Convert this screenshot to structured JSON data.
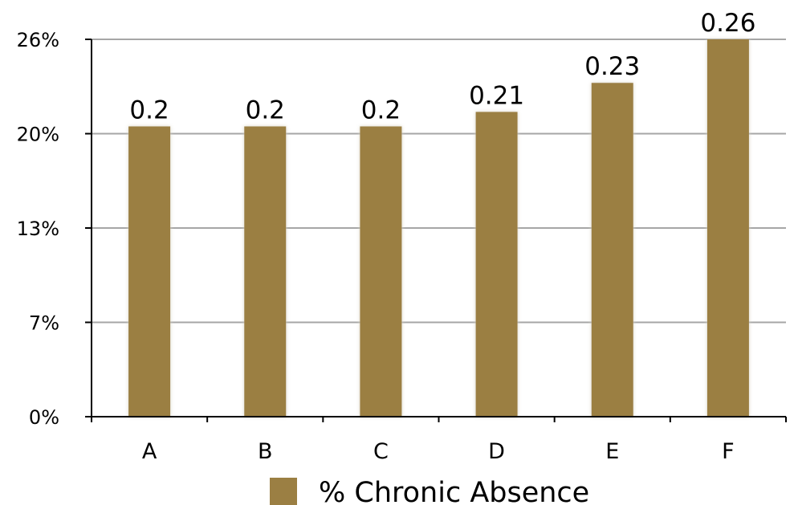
{
  "chart_data": {
    "type": "bar",
    "categories": [
      "A",
      "B",
      "C",
      "D",
      "E",
      "F"
    ],
    "series": [
      {
        "name": "% Chronic Absence",
        "values": [
          0.2,
          0.2,
          0.2,
          0.21,
          0.23,
          0.26
        ],
        "data_labels": [
          "0.2",
          "0.2",
          "0.2",
          "0.21",
          "0.23",
          "0.26"
        ]
      }
    ],
    "y_ticks": [
      0,
      0.065,
      0.13,
      0.195,
      0.26
    ],
    "y_tick_labels": [
      "0%",
      "7%",
      "13%",
      "20%",
      "26%"
    ],
    "ylim": [
      0,
      0.26
    ],
    "grid": true,
    "legend_position": "bottom",
    "colors": {
      "bar": "#9b7f43",
      "grid": "#a6a6a6",
      "axis": "#000000"
    }
  }
}
